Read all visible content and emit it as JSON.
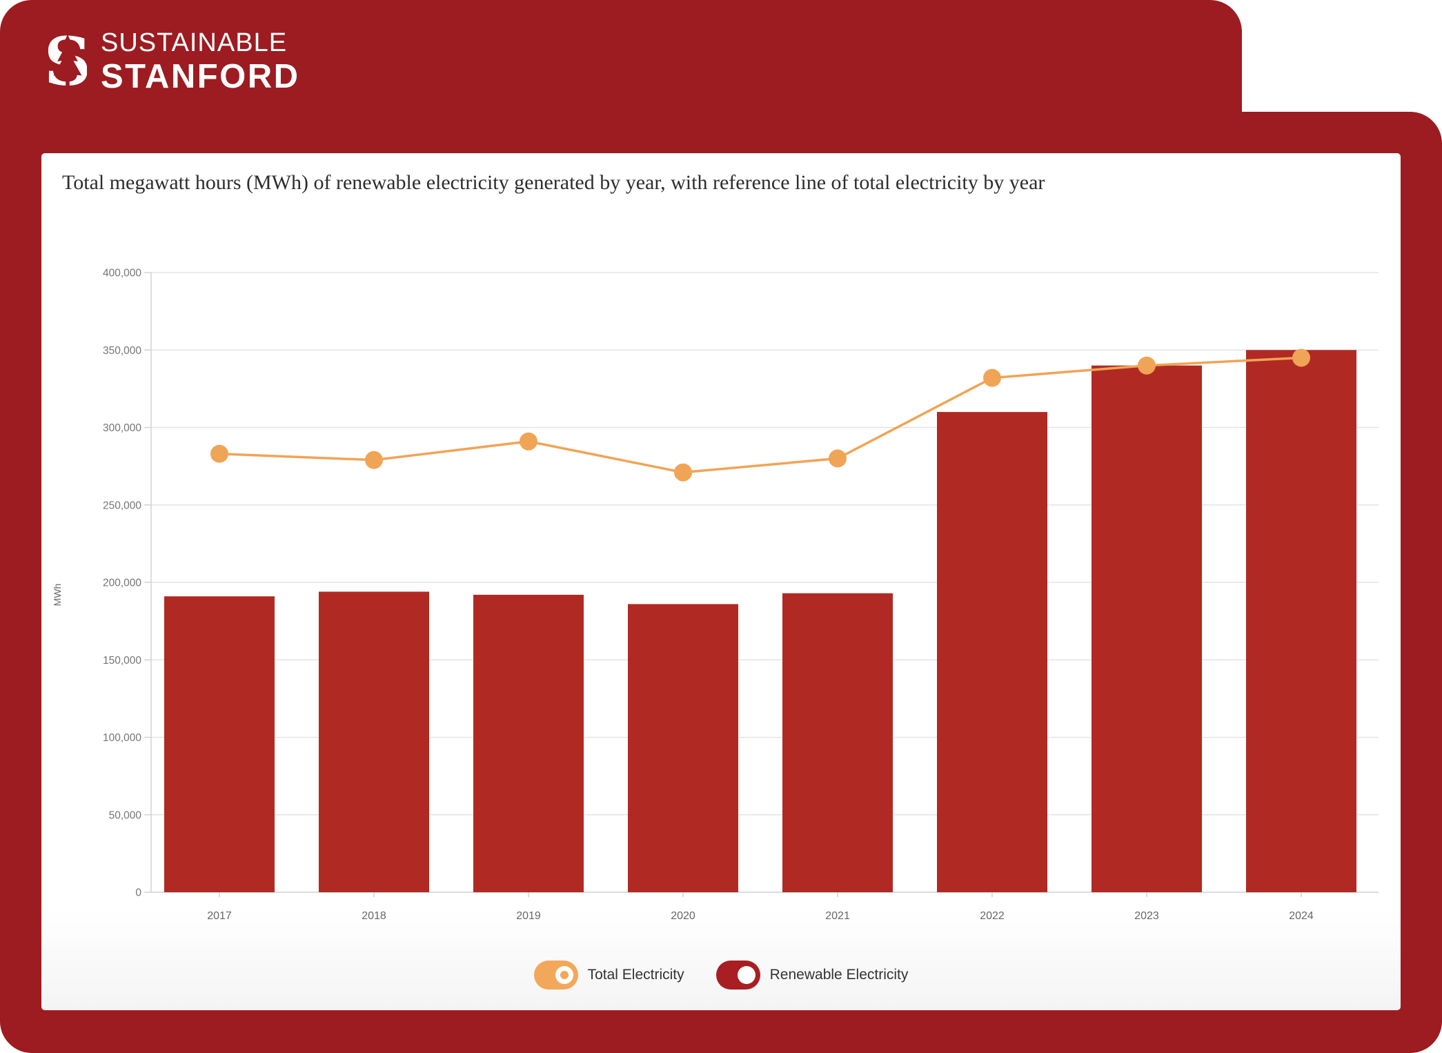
{
  "brand": {
    "line1": "SUSTAINABLE",
    "line2": "STANFORD",
    "logo": "stanford-block-s-tree-icon"
  },
  "title": "Total megawatt hours (MWh) of renewable electricity generated by year, with reference line of total electricity by year",
  "colors": {
    "frame_red": "#9c1c21",
    "bar_red": "#b02a23",
    "line_orange": "#f0a456",
    "grid": "#e3e3e3",
    "axis": "#cfcfcf",
    "ytick_text": "#757575",
    "xtick_text": "#666666",
    "title_text": "#2d2d2d",
    "legend_text": "#333333",
    "card_bg": "#ffffff"
  },
  "chart_data": {
    "type": "bar+line",
    "categories": [
      "2017",
      "2018",
      "2019",
      "2020",
      "2021",
      "2022",
      "2023",
      "2024"
    ],
    "series": [
      {
        "name": "Renewable Electricity",
        "type": "bar",
        "color": "#b02a23",
        "values": [
          191000,
          194000,
          192000,
          186000,
          193000,
          310000,
          340000,
          350000
        ]
      },
      {
        "name": "Total Electricity",
        "type": "line",
        "color": "#f0a456",
        "values": [
          283000,
          279000,
          291000,
          271000,
          280000,
          332000,
          340000,
          345000
        ]
      }
    ],
    "xlabel": "",
    "ylabel": "MWh",
    "ylim": [
      0,
      400000
    ],
    "ytick_step": 50000,
    "ytick_labels": [
      "0",
      "50,000",
      "100,000",
      "150,000",
      "200,000",
      "250,000",
      "300,000",
      "350,000",
      "400,000"
    ],
    "grid": true,
    "legend_position": "bottom-center"
  },
  "legend": {
    "items": [
      {
        "label": "Total Electricity",
        "color": "#f3a75a",
        "knob": "donut",
        "series_type": "line"
      },
      {
        "label": "Renewable Electricity",
        "color": "#a81e22",
        "knob": "solid",
        "series_type": "bar"
      }
    ]
  }
}
